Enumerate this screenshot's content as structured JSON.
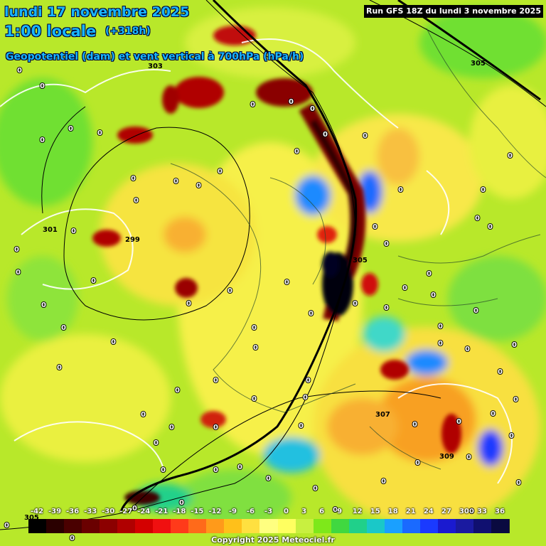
{
  "header": {
    "date": "lundi 17 novembre 2025",
    "time": "1:00 locale",
    "lead": "(+318h)",
    "parameter": "Geopotentiel (dam) et vent vertical à 700hPa (hPa/h)",
    "run": "Run GFS 18Z du lundi 3 novembre 2025"
  },
  "geopotential_labels": [
    "305",
    "303",
    "301",
    "299",
    "305",
    "307",
    "309",
    "305"
  ],
  "legend": {
    "values": [
      "-42",
      "-39",
      "-36",
      "-33",
      "-30",
      "-27",
      "-24",
      "-21",
      "-18",
      "-15",
      "-12",
      "-9",
      "-6",
      "-3",
      "0",
      "3",
      "6",
      "9",
      "12",
      "15",
      "18",
      "21",
      "24",
      "27",
      "30",
      "33",
      "36"
    ],
    "colors": [
      "#000000",
      "#2a0000",
      "#4a0000",
      "#6a0000",
      "#8c0000",
      "#b00000",
      "#d40000",
      "#f01010",
      "#ff3a1a",
      "#ff6a1a",
      "#ff9a1a",
      "#ffc01a",
      "#ffe040",
      "#ffff80",
      "#ffff60",
      "#c8f040",
      "#7ee81a",
      "#40d840",
      "#20d08a",
      "#1ac8c8",
      "#1aa0ff",
      "#1a6aff",
      "#1a3aff",
      "#1a1ad0",
      "#1a1aa0",
      "#101070",
      "#0a0a40"
    ]
  },
  "copyright": "Copyright 2025 Meteociel.fr",
  "zero_label": "0"
}
